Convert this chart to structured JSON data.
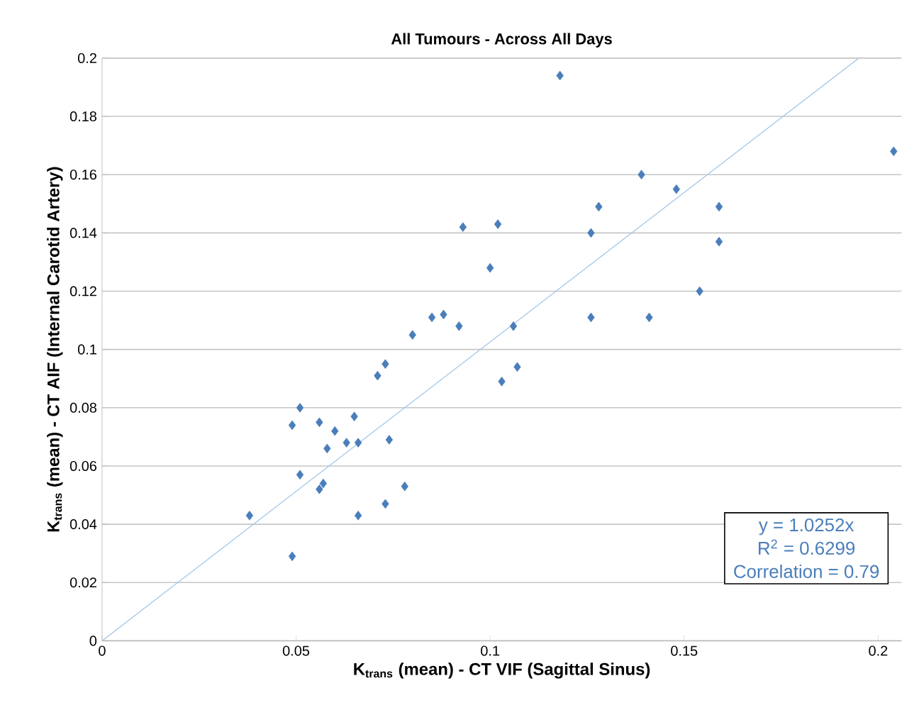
{
  "chart_data": {
    "type": "scatter",
    "title": "All Tumours - Across All Days",
    "xlabel": "K$_{trans}$ (mean) - CT VIF (Sagittal Sinus)",
    "ylabel": "K$_{trans}$ (mean) - CT AIF (Internal Carotid Artery)",
    "xlim": [
      0,
      0.206
    ],
    "ylim": [
      0,
      0.2
    ],
    "xticks": [
      0,
      0.05,
      0.1,
      0.15,
      0.2
    ],
    "yticks": [
      0,
      0.02,
      0.04,
      0.06,
      0.08,
      0.1,
      0.12,
      0.14,
      0.16,
      0.18,
      0.2
    ],
    "grid": "y",
    "marker": "diamond",
    "annotations": [
      "y = 1.0252x",
      "R$^{2}$ = 0.6299",
      "Correlation = 0.79"
    ],
    "series": [
      {
        "color": "#4a7ebb",
        "x": [
          0.038,
          0.049,
          0.049,
          0.051,
          0.051,
          0.056,
          0.056,
          0.057,
          0.058,
          0.06,
          0.063,
          0.065,
          0.066,
          0.066,
          0.071,
          0.073,
          0.074,
          0.073,
          0.078,
          0.08,
          0.085,
          0.088,
          0.092,
          0.093,
          0.1,
          0.102,
          0.103,
          0.106,
          0.107,
          0.118,
          0.126,
          0.126,
          0.128,
          0.139,
          0.141,
          0.148,
          0.154,
          0.159,
          0.159,
          0.204
        ],
        "values": [
          0.043,
          0.029,
          0.074,
          0.08,
          0.057,
          0.075,
          0.052,
          0.054,
          0.066,
          0.072,
          0.068,
          0.077,
          0.068,
          0.043,
          0.091,
          0.095,
          0.069,
          0.047,
          0.053,
          0.105,
          0.111,
          0.112,
          0.108,
          0.142,
          0.128,
          0.143,
          0.089,
          0.108,
          0.094,
          0.194,
          0.14,
          0.111,
          0.149,
          0.16,
          0.111,
          0.155,
          0.12,
          0.149,
          0.137,
          0.168
        ]
      },
      {
        "type": "line",
        "color": "#9dc3e6",
        "marker": "none",
        "line_style": "solid",
        "x": [
          0,
          0.195
        ],
        "values": [
          0,
          0.2
        ]
      }
    ]
  }
}
